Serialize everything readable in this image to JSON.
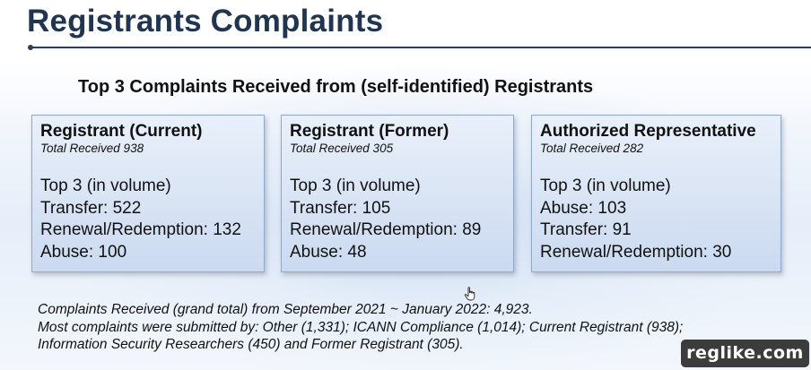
{
  "slide": {
    "title": "Registrants Complaints",
    "subtitle": "Top 3 Complaints Received from (self-identified) Registrants"
  },
  "cards": [
    {
      "heading": "Registrant (Current)",
      "total": "Total Received 938",
      "lines": [
        "Top 3 (in volume)",
        "Transfer: 522",
        "Renewal/Redemption: 132",
        "Abuse: 100"
      ]
    },
    {
      "heading": "Registrant (Former)",
      "total": "Total Received 305",
      "lines": [
        "Top 3 (in volume)",
        "Transfer: 105",
        "Renewal/Redemption: 89",
        "Abuse: 48"
      ]
    },
    {
      "heading": "Authorized Representative",
      "total": "Total Received 282",
      "lines": [
        "Top 3 (in volume)",
        "Abuse: 103",
        "Transfer: 91",
        "Renewal/Redemption: 30"
      ]
    }
  ],
  "notes": [
    "Complaints Received (grand total) from September 2021 ~ January 2022: 4,923.",
    "Most complaints were submitted by: Other (1,331); ICANN Compliance (1,014); Current Registrant (938);",
    "Information Security Researchers (450) and Former Registrant (305)."
  ],
  "watermark": "reglike.com",
  "icons": {
    "cursor": "hand-pointer-icon"
  }
}
